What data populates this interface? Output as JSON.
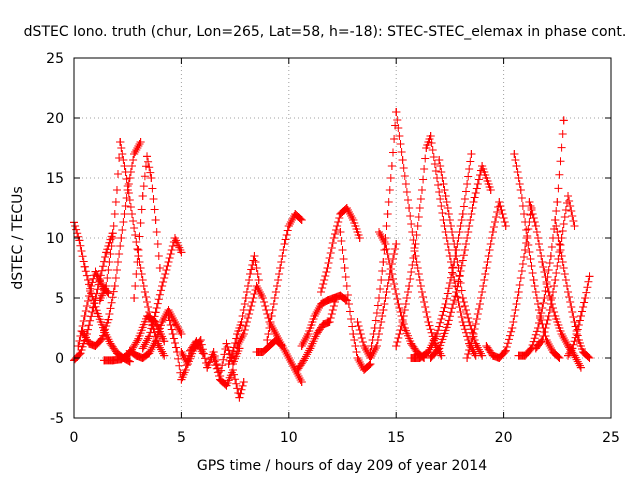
{
  "chart_data": {
    "type": "scatter",
    "title": "dSTEC Iono. truth (chur, Lon=265, Lat=58, h=-18): STEC-STEC_elemax in phase cont.",
    "xlabel": "GPS time / hours of day 209 of year 2014",
    "ylabel": "dSTEC  / TECUs",
    "xlim": [
      0,
      25
    ],
    "ylim": [
      -5,
      25
    ],
    "xticks": [
      0,
      5,
      10,
      15,
      20,
      25
    ],
    "yticks": [
      -5,
      0,
      5,
      10,
      15,
      20,
      25
    ],
    "grid": true,
    "marker": "plus",
    "series_color": "#ff0000",
    "series": [
      {
        "x": [
          0.0,
          0.25,
          0.5,
          0.8,
          1.1,
          1.4,
          1.7,
          2.0,
          2.3,
          2.6
        ],
        "y": [
          11.3,
          9.8,
          7.6,
          5.4,
          3.7,
          2.3,
          1.2,
          0.4,
          0.0,
          -0.3
        ]
      },
      {
        "x": [
          0.0,
          0.3,
          0.6,
          0.9,
          1.2,
          1.5,
          1.8
        ],
        "y": [
          -0.2,
          0.4,
          2.0,
          4.2,
          6.5,
          8.8,
          10.4
        ]
      },
      {
        "x": [
          0.2,
          0.5,
          0.8,
          1.0,
          1.2,
          1.4,
          1.6
        ],
        "y": [
          1.0,
          3.5,
          6.0,
          7.2,
          6.4,
          5.8,
          5.4
        ]
      },
      {
        "x": [
          0.4,
          0.7,
          1.0,
          1.3,
          1.6,
          1.9,
          2.2,
          2.5,
          2.8,
          3.1
        ],
        "y": [
          2.2,
          1.2,
          1.0,
          1.6,
          3.2,
          6.0,
          10.0,
          14.0,
          17.0,
          18.0
        ]
      },
      {
        "x": [
          1.2,
          1.5,
          1.8,
          2.0,
          2.15
        ],
        "y": [
          4.8,
          6.0,
          10.0,
          14.0,
          18.0
        ]
      },
      {
        "x": [
          2.15,
          2.4,
          2.7,
          3.0,
          3.3,
          3.6,
          3.9,
          4.2
        ],
        "y": [
          18.0,
          15.5,
          12.0,
          8.5,
          5.5,
          3.0,
          1.2,
          0.2
        ]
      },
      {
        "x": [
          1.4,
          1.8,
          2.2,
          2.6,
          3.0,
          3.4,
          3.8,
          4.2
        ],
        "y": [
          -0.2,
          -0.2,
          -0.1,
          0.4,
          1.6,
          3.5,
          3.0,
          1.4
        ]
      },
      {
        "x": [
          2.8,
          3.0,
          3.2,
          3.4,
          3.6,
          3.8,
          4.0
        ],
        "y": [
          5.0,
          9.0,
          13.5,
          16.8,
          15.0,
          11.5,
          7.5
        ]
      },
      {
        "x": [
          3.2,
          3.5,
          3.8,
          4.1,
          4.4,
          4.7,
          5.0
        ],
        "y": [
          0.8,
          1.8,
          3.8,
          6.0,
          8.0,
          10.0,
          8.8
        ]
      },
      {
        "x": [
          2.6,
          2.9,
          3.2,
          3.5,
          3.8,
          4.1,
          4.4,
          4.7,
          5.0
        ],
        "y": [
          0.6,
          0.2,
          0.0,
          0.4,
          1.4,
          3.0,
          4.0,
          3.0,
          2.0
        ]
      },
      {
        "x": [
          4.4,
          4.6,
          4.8,
          5.0,
          5.2,
          5.4,
          5.7,
          6.0
        ],
        "y": [
          3.5,
          2.0,
          0.5,
          -1.8,
          -1.0,
          0.6,
          1.4,
          0.4
        ]
      },
      {
        "x": [
          5.0,
          5.3,
          5.6,
          5.9,
          6.2,
          6.5,
          6.8,
          7.1,
          7.4,
          7.7
        ],
        "y": [
          0.5,
          -0.5,
          0.8,
          1.5,
          -0.8,
          0.5,
          -1.5,
          1.2,
          -0.5,
          0.8
        ]
      },
      {
        "x": [
          6.5,
          6.8,
          7.1,
          7.4,
          7.7,
          7.9
        ],
        "y": [
          0.0,
          -1.8,
          -2.3,
          -1.0,
          -3.3,
          -2.0
        ]
      },
      {
        "x": [
          7.2,
          7.4,
          7.6,
          7.8,
          8.0,
          8.2,
          8.4,
          8.6
        ],
        "y": [
          -0.5,
          0.5,
          2.0,
          3.0,
          5.0,
          7.0,
          8.5,
          6.5
        ]
      },
      {
        "x": [
          7.6,
          7.9,
          8.2,
          8.5,
          8.8,
          9.1,
          9.4,
          9.7
        ],
        "y": [
          1.0,
          2.0,
          4.0,
          6.0,
          5.0,
          3.0,
          2.0,
          1.0
        ]
      },
      {
        "x": [
          8.5,
          8.8,
          9.1,
          9.4,
          9.7,
          10.0,
          10.3,
          10.6
        ],
        "y": [
          0.5,
          0.5,
          1.0,
          1.5,
          1.0,
          0.0,
          -1.0,
          -2.0
        ]
      },
      {
        "x": [
          9.0,
          9.2,
          9.4,
          9.6,
          9.8,
          10.0,
          10.3,
          10.6
        ],
        "y": [
          1.5,
          3.5,
          5.5,
          7.5,
          9.5,
          11.0,
          12.0,
          11.5
        ]
      },
      {
        "x": [
          10.4,
          10.7,
          11.0,
          11.3,
          11.6,
          11.9,
          12.2
        ],
        "y": [
          -1.0,
          -0.2,
          0.8,
          2.0,
          2.8,
          3.0,
          5.0
        ]
      },
      {
        "x": [
          10.6,
          10.9,
          11.2,
          11.5,
          11.8,
          12.1,
          12.4,
          12.7
        ],
        "y": [
          1.0,
          2.0,
          3.5,
          4.5,
          4.8,
          5.0,
          5.2,
          4.8
        ]
      },
      {
        "x": [
          11.5,
          11.8,
          12.1,
          12.4,
          12.7,
          13.0,
          13.3
        ],
        "y": [
          5.5,
          7.5,
          10.0,
          12.0,
          12.5,
          11.5,
          10.0
        ]
      },
      {
        "x": [
          12.4,
          12.6,
          12.8,
          13.0,
          13.2,
          13.5,
          13.8
        ],
        "y": [
          10.5,
          7.5,
          4.5,
          2.0,
          0.0,
          -1.0,
          -0.5
        ]
      },
      {
        "x": [
          13.2,
          13.5,
          13.8,
          14.1,
          14.4,
          14.7,
          15.0
        ],
        "y": [
          3.0,
          1.0,
          0.0,
          1.0,
          4.0,
          7.0,
          9.5
        ]
      },
      {
        "x": [
          13.8,
          14.0,
          14.2,
          14.4,
          14.6,
          14.8,
          15.0
        ],
        "y": [
          0.5,
          2.5,
          5.0,
          8.0,
          12.0,
          16.0,
          20.5
        ]
      },
      {
        "x": [
          15.0,
          15.3,
          15.6,
          15.9,
          16.2,
          16.5,
          16.8,
          17.1
        ],
        "y": [
          20.5,
          16.5,
          12.5,
          8.5,
          5.5,
          3.0,
          1.2,
          0.2
        ]
      },
      {
        "x": [
          14.2,
          14.5,
          14.8,
          15.1,
          15.4,
          15.7,
          16.0,
          16.3
        ],
        "y": [
          10.5,
          9.5,
          7.0,
          4.5,
          2.5,
          1.2,
          0.4,
          0.0
        ]
      },
      {
        "x": [
          15.0,
          15.3,
          15.6,
          15.9,
          16.2,
          16.4,
          16.6
        ],
        "y": [
          1.0,
          3.0,
          6.0,
          9.5,
          14.0,
          17.5,
          18.5
        ]
      },
      {
        "x": [
          16.6,
          16.9,
          17.2,
          17.5,
          17.8,
          18.1,
          18.4,
          18.7
        ],
        "y": [
          18.5,
          15.0,
          11.5,
          8.5,
          5.5,
          3.0,
          1.2,
          0.2
        ]
      },
      {
        "x": [
          15.7,
          16.1,
          16.5,
          16.9,
          17.3,
          17.7,
          18.1,
          18.5
        ],
        "y": [
          0.0,
          0.0,
          0.5,
          2.0,
          4.5,
          8.0,
          12.0,
          17.0
        ]
      },
      {
        "x": [
          17.0,
          17.3,
          17.6,
          17.9,
          18.1,
          18.4,
          18.7,
          19.0
        ],
        "y": [
          16.5,
          13.5,
          10.5,
          7.5,
          5.0,
          3.0,
          1.2,
          0.2
        ]
      },
      {
        "x": [
          16.6,
          17.0,
          17.4,
          17.8,
          18.2,
          18.6,
          19.0,
          19.4
        ],
        "y": [
          0.0,
          0.8,
          2.8,
          5.5,
          9.0,
          13.0,
          16.0,
          14.0
        ]
      },
      {
        "x": [
          18.3,
          18.6,
          18.9,
          19.2,
          19.5,
          19.8,
          20.1
        ],
        "y": [
          0.0,
          2.0,
          4.5,
          7.5,
          10.5,
          13.0,
          11.0
        ]
      },
      {
        "x": [
          19.2,
          19.5,
          19.8,
          20.1,
          20.4,
          20.7,
          21.0,
          21.3
        ],
        "y": [
          1.0,
          0.2,
          0.0,
          0.6,
          2.5,
          5.5,
          9.0,
          12.5
        ]
      },
      {
        "x": [
          20.5,
          20.8,
          21.1,
          21.4,
          21.7,
          22.0,
          22.3,
          22.6
        ],
        "y": [
          17.0,
          14.0,
          10.0,
          6.5,
          3.5,
          1.5,
          0.5,
          0.0
        ]
      },
      {
        "x": [
          20.7,
          21.0,
          21.3,
          21.6,
          21.9,
          22.2,
          22.5,
          22.8
        ],
        "y": [
          0.2,
          0.2,
          0.8,
          2.5,
          5.0,
          8.5,
          13.0,
          19.8
        ]
      },
      {
        "x": [
          21.2,
          21.5,
          21.8,
          22.1,
          22.4,
          22.7,
          23.0,
          23.3,
          23.6
        ],
        "y": [
          13.0,
          11.0,
          8.0,
          5.5,
          3.5,
          2.0,
          1.0,
          0.2,
          -0.8
        ]
      },
      {
        "x": [
          22.4,
          22.7,
          23.0,
          23.3,
          23.5,
          23.7,
          24.0
        ],
        "y": [
          11.5,
          8.5,
          5.5,
          3.0,
          1.5,
          0.5,
          0.0
        ]
      },
      {
        "x": [
          23.0,
          23.2,
          23.4,
          23.6,
          23.8,
          24.0
        ],
        "y": [
          0.2,
          0.8,
          2.0,
          3.5,
          5.0,
          6.8
        ]
      },
      {
        "x": [
          21.5,
          21.8,
          22.1,
          22.4,
          22.7,
          23.0,
          23.3
        ],
        "y": [
          0.8,
          1.5,
          3.5,
          6.5,
          10.0,
          13.5,
          11.0
        ]
      }
    ]
  }
}
